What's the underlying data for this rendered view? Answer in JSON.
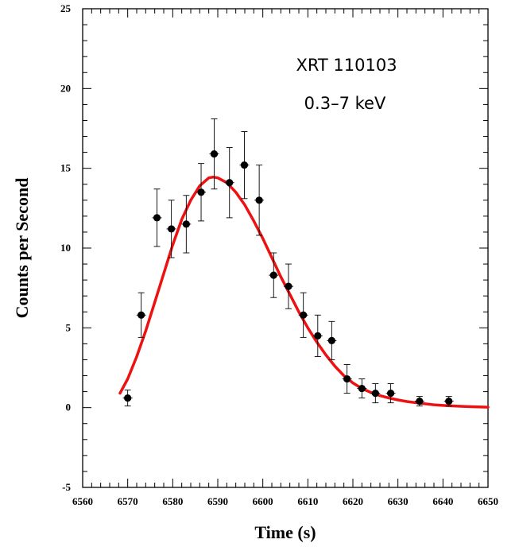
{
  "chart_data": {
    "type": "scatter",
    "title": "",
    "xlabel": "Time (s)",
    "ylabel": "Counts per Second",
    "xlim": [
      6560,
      6650
    ],
    "ylim": [
      -5,
      25
    ],
    "x_ticks": [
      "6560",
      "6570",
      "6580",
      "6590",
      "6600",
      "6610",
      "6620",
      "6630",
      "6640",
      "6650"
    ],
    "y_ticks": [
      "-5",
      "0",
      "5",
      "10",
      "15",
      "20",
      "25"
    ],
    "grid": false,
    "annotations": [
      "XRT 110103",
      "0.3–7 keV"
    ],
    "colors": {
      "points": "#000000",
      "fit": "#ee1111",
      "axes": "#000000"
    },
    "series": [
      {
        "type": "scatter_errorbars",
        "points": [
          {
            "x": 6570.0,
            "y": 0.6,
            "err": 0.5
          },
          {
            "x": 6573.0,
            "y": 5.8,
            "err": 1.4
          },
          {
            "x": 6576.5,
            "y": 11.9,
            "err": 1.8
          },
          {
            "x": 6579.7,
            "y": 11.2,
            "err": 1.8
          },
          {
            "x": 6583.0,
            "y": 11.5,
            "err": 1.8
          },
          {
            "x": 6586.3,
            "y": 13.5,
            "err": 1.8
          },
          {
            "x": 6589.2,
            "y": 15.9,
            "err": 2.2
          },
          {
            "x": 6592.6,
            "y": 14.1,
            "err": 2.2
          },
          {
            "x": 6595.9,
            "y": 15.2,
            "err": 2.1
          },
          {
            "x": 6599.2,
            "y": 13.0,
            "err": 2.2
          },
          {
            "x": 6602.4,
            "y": 8.3,
            "err": 1.4
          },
          {
            "x": 6605.7,
            "y": 7.6,
            "err": 1.4
          },
          {
            "x": 6609.0,
            "y": 5.8,
            "err": 1.4
          },
          {
            "x": 6612.2,
            "y": 4.5,
            "err": 1.3
          },
          {
            "x": 6615.3,
            "y": 4.2,
            "err": 1.2
          },
          {
            "x": 6618.7,
            "y": 1.8,
            "err": 0.9
          },
          {
            "x": 6622.0,
            "y": 1.2,
            "err": 0.6
          },
          {
            "x": 6625.0,
            "y": 0.9,
            "err": 0.6
          },
          {
            "x": 6628.4,
            "y": 0.9,
            "err": 0.6
          },
          {
            "x": 6634.8,
            "y": 0.4,
            "err": 0.3
          },
          {
            "x": 6641.3,
            "y": 0.4,
            "err": 0.3
          }
        ]
      },
      {
        "type": "line",
        "x": [
          6568.3,
          6570,
          6572,
          6574,
          6576,
          6578,
          6580,
          6582,
          6584,
          6586,
          6588,
          6589,
          6590,
          6592,
          6594,
          6596,
          6598,
          6600,
          6602,
          6604,
          6606,
          6608,
          6610,
          6612,
          6614,
          6616,
          6618,
          6620,
          6622,
          6624,
          6626,
          6628,
          6630,
          6632,
          6635,
          6638,
          6641,
          6645,
          6650
        ],
        "y": [
          0.9,
          1.8,
          3.2,
          4.8,
          6.6,
          8.4,
          10.2,
          11.8,
          13.0,
          13.9,
          14.4,
          14.45,
          14.4,
          14.1,
          13.5,
          12.7,
          11.7,
          10.6,
          9.4,
          8.2,
          7.1,
          6.0,
          5.0,
          4.1,
          3.3,
          2.6,
          2.0,
          1.55,
          1.2,
          0.95,
          0.75,
          0.6,
          0.48,
          0.38,
          0.27,
          0.18,
          0.12,
          0.07,
          0.03
        ]
      }
    ]
  }
}
